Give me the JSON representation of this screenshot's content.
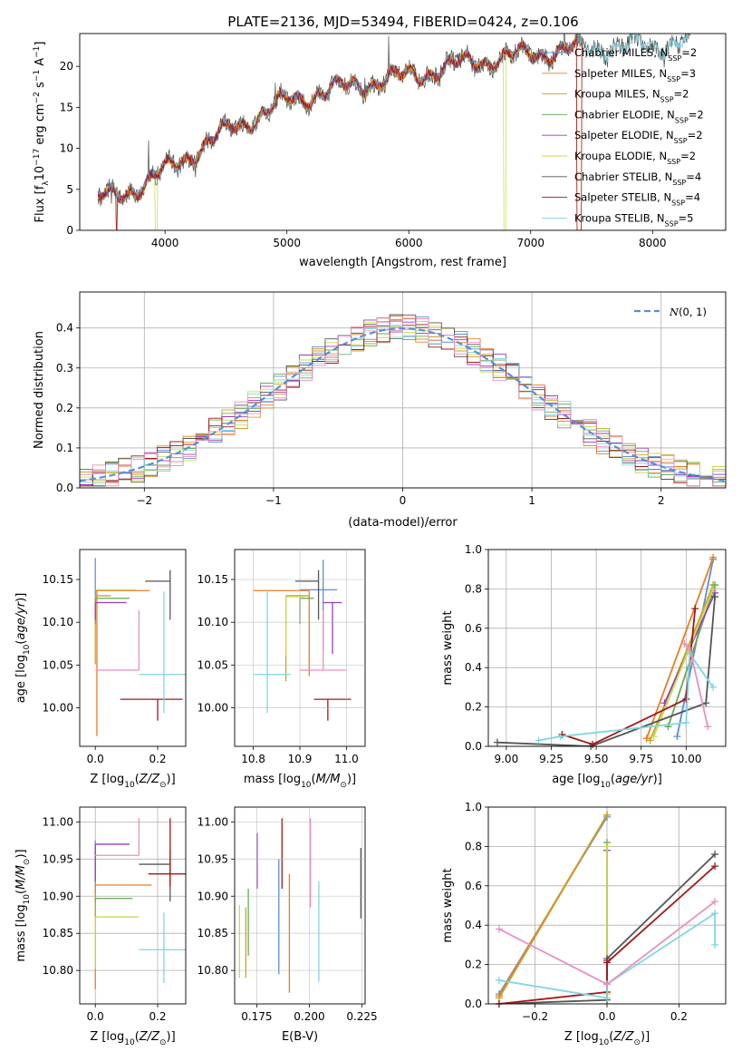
{
  "figure": {
    "title": "PLATE=2136, MJD=53494, FIBERID=0424, z=0.106"
  },
  "colors": [
    "#5a8fd8",
    "#e87d27",
    "#c9a227",
    "#66aa55",
    "#9b3db8",
    "#c8dc4c",
    "#555555",
    "#a01818",
    "#7fd6e0",
    "#e890c0"
  ],
  "model_names": [
    "Chabrier MILES",
    "Salpeter MILES",
    "Kroupa MILES",
    "Chabrier ELODIE",
    "Salpeter ELODIE",
    "Kroupa ELODIE",
    "Chabrier STELIB",
    "Salpeter STELIB",
    "Kroupa STELIB"
  ],
  "chart_data": [
    {
      "id": "spectrum",
      "type": "line",
      "xlabel": "wavelength [Angstrom, rest frame]",
      "ylabel": "Flux [f",
      "xlim": [
        3300,
        8600
      ],
      "ylim": [
        0,
        24
      ],
      "xticks": [
        "4000",
        "5000",
        "6000",
        "7000",
        "8000"
      ],
      "yticks": [
        "0",
        "5",
        "10",
        "15",
        "20"
      ],
      "legend": [
        {
          "name": "Chabrier MILES",
          "nssp": "2"
        },
        {
          "name": "Salpeter MILES",
          "nssp": "3"
        },
        {
          "name": "Kroupa MILES",
          "nssp": "2"
        },
        {
          "name": "Chabrier ELODIE",
          "nssp": "2"
        },
        {
          "name": "Salpeter ELODIE",
          "nssp": "2"
        },
        {
          "name": "Kroupa ELODIE",
          "nssp": "2"
        },
        {
          "name": "Chabrier STELIB",
          "nssp": "4"
        },
        {
          "name": "Salpeter STELIB",
          "nssp": "4"
        },
        {
          "name": "Kroupa STELIB",
          "nssp": "5"
        }
      ],
      "continuum": [
        [
          3450,
          3.8
        ],
        [
          3600,
          4.2
        ],
        [
          3800,
          5.5
        ],
        [
          4000,
          7.2
        ],
        [
          4200,
          9.2
        ],
        [
          4500,
          12.0
        ],
        [
          5000,
          15.8
        ],
        [
          5500,
          17.5
        ],
        [
          6000,
          18.8
        ],
        [
          6500,
          20.5
        ],
        [
          7000,
          21.5
        ],
        [
          7500,
          22.3
        ],
        [
          8000,
          22.5
        ],
        [
          8300,
          23.2
        ]
      ]
    },
    {
      "id": "residuals",
      "type": "histogram",
      "xlabel": "(data-model)/error",
      "ylabel": "Normed distribution",
      "xlim": [
        -2.5,
        2.5
      ],
      "ylim": [
        0,
        0.49
      ],
      "xticks": [
        "−2",
        "−1",
        "0",
        "1",
        "2"
      ],
      "yticks": [
        "0.0",
        "0.1",
        "0.2",
        "0.3",
        "0.4"
      ],
      "gaussian_label": "(0, 1)",
      "bin_width": 0.1
    },
    {
      "id": "age_vs_Z",
      "type": "errorbar",
      "xlabel": "Z [log",
      "ylabel": "age  [log",
      "xlim": [
        -0.05,
        0.29
      ],
      "ylim": [
        9.955,
        10.185
      ],
      "xticks": [
        "0.0",
        "0.2"
      ],
      "yticks": [
        "10.00",
        "10.05",
        "10.10",
        "10.15"
      ],
      "points": [
        {
          "x": 0.0,
          "xerr": [
            0.0,
            0.0
          ],
          "y": 10.14,
          "yerr": [
            0.035,
            0.035
          ],
          "c": 0
        },
        {
          "x": 0.005,
          "xerr": [
            0.005,
            0.17
          ],
          "y": 10.137,
          "yerr": [
            0.17,
            0.0
          ],
          "c": 1
        },
        {
          "x": 0.0,
          "xerr": [
            0.0,
            0.05
          ],
          "y": 10.131,
          "yerr": [
            0.08,
            0.0
          ],
          "c": 2
        },
        {
          "x": 0.0,
          "xerr": [
            0.0,
            0.11
          ],
          "y": 10.128,
          "yerr": [
            0.03,
            0.0
          ],
          "c": 3
        },
        {
          "x": 0.0,
          "xerr": [
            0.0,
            0.1
          ],
          "y": 10.123,
          "yerr": [
            0.02,
            0.0
          ],
          "c": 4
        },
        {
          "x": 0.0,
          "xerr": [
            0.0,
            0.13
          ],
          "y": 10.138,
          "yerr": [
            0.0,
            0.0
          ],
          "c": 5
        },
        {
          "x": 0.24,
          "xerr": [
            0.08,
            0.0
          ],
          "y": 10.148,
          "yerr": [
            0.045,
            0.013
          ],
          "c": 6
        },
        {
          "x": 0.2,
          "xerr": [
            0.12,
            0.08
          ],
          "y": 10.01,
          "yerr": [
            0.025,
            0.0
          ],
          "c": 7
        },
        {
          "x": 0.22,
          "xerr": [
            0.08,
            0.08
          ],
          "y": 10.039,
          "yerr": [
            0.045,
            0.097
          ],
          "c": 8
        },
        {
          "x": 0.14,
          "xerr": [
            0.14,
            0.0
          ],
          "y": 10.044,
          "yerr": [
            0.0,
            0.07
          ],
          "c": 9
        }
      ]
    },
    {
      "id": "age_vs_mass",
      "type": "errorbar",
      "xlabel": "mass [log",
      "ylabel": "",
      "xlim": [
        10.76,
        11.04
      ],
      "ylim": [
        9.955,
        10.185
      ],
      "xticks": [
        "10.8",
        "10.9",
        "11.0"
      ],
      "yticks": [
        "10.00",
        "10.05",
        "10.10",
        "10.15"
      ],
      "points": [
        {
          "x": 10.95,
          "xerr": [
            0.05,
            0.03
          ],
          "y": 10.138,
          "yerr": [
            0.07,
            0.035
          ],
          "c": 0
        },
        {
          "x": 10.92,
          "xerr": [
            0.12,
            0.0
          ],
          "y": 10.137,
          "yerr": [
            0.1,
            0.0
          ],
          "c": 1
        },
        {
          "x": 10.87,
          "xerr": [
            0.0,
            0.05
          ],
          "y": 10.131,
          "yerr": [
            0.1,
            0.0
          ],
          "c": 2
        },
        {
          "x": 10.9,
          "xerr": [
            0.0,
            0.03
          ],
          "y": 10.128,
          "yerr": [
            0.03,
            0.0
          ],
          "c": 3
        },
        {
          "x": 10.97,
          "xerr": [
            0.02,
            0.02
          ],
          "y": 10.123,
          "yerr": [
            0.06,
            0.0
          ],
          "c": 4
        },
        {
          "x": 10.87,
          "xerr": [
            0.0,
            0.04
          ],
          "y": 10.13,
          "yerr": [
            0.07,
            0.0
          ],
          "c": 5
        },
        {
          "x": 10.94,
          "xerr": [
            0.05,
            0.0
          ],
          "y": 10.148,
          "yerr": [
            0.045,
            0.013
          ],
          "c": 6
        },
        {
          "x": 10.96,
          "xerr": [
            0.03,
            0.05
          ],
          "y": 10.01,
          "yerr": [
            0.025,
            0.0
          ],
          "c": 7
        },
        {
          "x": 10.83,
          "xerr": [
            0.03,
            0.05
          ],
          "y": 10.039,
          "yerr": [
            0.045,
            0.097
          ],
          "c": 8
        },
        {
          "x": 10.95,
          "xerr": [
            0.05,
            0.05
          ],
          "y": 10.044,
          "yerr": [
            0.0,
            0.07
          ],
          "c": 9
        }
      ]
    },
    {
      "id": "weight_vs_age",
      "type": "line",
      "xlabel": "age  [log",
      "ylabel": "mass weight",
      "xlim": [
        8.9,
        10.22
      ],
      "ylim": [
        0,
        1.0
      ],
      "xticks": [
        "9.00",
        "9.25",
        "9.50",
        "9.75",
        "10.00"
      ],
      "yticks": [
        "0.0",
        "0.2",
        "0.4",
        "0.6",
        "0.8",
        "1.0"
      ],
      "series": [
        {
          "c": 0,
          "x": [
            9.95,
            10.15
          ],
          "y": [
            0.05,
            0.95
          ]
        },
        {
          "c": 1,
          "x": [
            9.78,
            10.15
          ],
          "y": [
            0.04,
            0.96
          ]
        },
        {
          "c": 2,
          "x": [
            9.8,
            10.15
          ],
          "y": [
            0.03,
            0.82
          ]
        },
        {
          "c": 3,
          "x": [
            9.9,
            10.16
          ],
          "y": [
            0.1,
            0.82
          ]
        },
        {
          "c": 4,
          "x": [
            9.88,
            10.16
          ],
          "y": [
            0.22,
            0.78
          ]
        },
        {
          "c": 5,
          "x": [
            9.82,
            10.15
          ],
          "y": [
            0.05,
            0.8
          ]
        },
        {
          "c": 6,
          "x": [
            8.95,
            9.47,
            10.11,
            10.16
          ],
          "y": [
            0.02,
            0.0,
            0.22,
            0.76
          ]
        },
        {
          "c": 7,
          "x": [
            9.31,
            9.48,
            10.0,
            10.05
          ],
          "y": [
            0.06,
            0.01,
            0.24,
            0.7
          ]
        },
        {
          "c": 8,
          "x": [
            9.18,
            9.3,
            10.0,
            10.02,
            10.15
          ],
          "y": [
            0.03,
            0.05,
            0.12,
            0.47,
            0.3
          ]
        },
        {
          "c": 9,
          "x": [
            9.99,
            10.02,
            10.12
          ],
          "y": [
            0.52,
            0.5,
            0.1
          ]
        }
      ]
    },
    {
      "id": "mass_vs_Z",
      "type": "errorbar",
      "xlabel": "Z [log",
      "ylabel": "mass [log",
      "xlim": [
        -0.05,
        0.29
      ],
      "ylim": [
        10.755,
        11.02
      ],
      "xticks": [
        "0.0",
        "0.2"
      ],
      "yticks": [
        "10.80",
        "10.85",
        "10.90",
        "10.95",
        "11.00"
      ],
      "points": [
        {
          "x": 0.0,
          "xerr": [
            0.0,
            0.0
          ],
          "y": 10.95,
          "yerr": [
            0.05,
            0.025
          ],
          "c": 0
        },
        {
          "x": 0.0,
          "xerr": [
            0.0,
            0.18
          ],
          "y": 10.915,
          "yerr": [
            0.14,
            0.0
          ],
          "c": 1
        },
        {
          "x": 0.0,
          "xerr": [
            0.0,
            0.0
          ],
          "y": 10.905,
          "yerr": [
            0.1,
            0.0
          ],
          "c": 2
        },
        {
          "x": 0.0,
          "xerr": [
            0.0,
            0.12
          ],
          "y": 10.897,
          "yerr": [
            0.005,
            0.0
          ],
          "c": 3
        },
        {
          "x": 0.0,
          "xerr": [
            0.0,
            0.11
          ],
          "y": 10.97,
          "yerr": [
            0.05,
            0.0
          ],
          "c": 4
        },
        {
          "x": 0.0,
          "xerr": [
            0.0,
            0.14
          ],
          "y": 10.872,
          "yerr": [
            0.07,
            0.0
          ],
          "c": 5
        },
        {
          "x": 0.24,
          "xerr": [
            0.1,
            0.0
          ],
          "y": 10.943,
          "yerr": [
            0.05,
            0.02
          ],
          "c": 6
        },
        {
          "x": 0.24,
          "xerr": [
            0.07,
            0.07
          ],
          "y": 10.93,
          "yerr": [
            0.017,
            0.075
          ],
          "c": 7
        },
        {
          "x": 0.22,
          "xerr": [
            0.08,
            0.08
          ],
          "y": 10.828,
          "yerr": [
            0.045,
            0.05
          ],
          "c": 8
        },
        {
          "x": 0.14,
          "xerr": [
            0.14,
            0.0
          ],
          "y": 10.955,
          "yerr": [
            0.0,
            0.05
          ],
          "c": 9
        }
      ]
    },
    {
      "id": "mass_vs_EBV",
      "type": "errorbar",
      "xlabel": "E(B-V)",
      "ylabel": "",
      "xlim": [
        0.1645,
        0.2265
      ],
      "ylim": [
        10.755,
        11.02
      ],
      "xticks": [
        "0.175",
        "0.200",
        "0.225"
      ],
      "yticks": [
        "10.80",
        "10.85",
        "10.90",
        "10.95",
        "11.00"
      ],
      "points": [
        {
          "x": 0.1855,
          "y": 10.88,
          "yerr": [
            0.085,
            0.07
          ],
          "c": 0
        },
        {
          "x": 0.1905,
          "y": 10.85,
          "yerr": [
            0.08,
            0.08
          ],
          "c": 1
        },
        {
          "x": 0.1698,
          "y": 10.855,
          "yerr": [
            0.065,
            0.03
          ],
          "c": 2
        },
        {
          "x": 0.171,
          "y": 10.85,
          "yerr": [
            0.03,
            0.06
          ],
          "c": 3
        },
        {
          "x": 0.1752,
          "y": 10.95,
          "yerr": [
            0.04,
            0.035
          ],
          "c": 4
        },
        {
          "x": 0.1668,
          "y": 10.848,
          "yerr": [
            0.058,
            0.04
          ],
          "c": 5
        },
        {
          "x": 0.2245,
          "y": 10.92,
          "yerr": [
            0.05,
            0.045
          ],
          "c": 6
        },
        {
          "x": 0.187,
          "y": 10.97,
          "yerr": [
            0.06,
            0.035
          ],
          "c": 7
        },
        {
          "x": 0.2045,
          "y": 10.855,
          "yerr": [
            0.07,
            0.065
          ],
          "c": 8
        },
        {
          "x": 0.2005,
          "y": 10.945,
          "yerr": [
            0.06,
            0.06
          ],
          "c": 9
        }
      ]
    },
    {
      "id": "weight_vs_Z",
      "type": "line",
      "xlabel": "Z [log",
      "ylabel": "mass weight",
      "xlim": [
        -0.33,
        0.33
      ],
      "ylim": [
        0,
        1.0
      ],
      "xticks": [
        "−0.2",
        "0.0",
        "0.2"
      ],
      "yticks": [
        "0.0",
        "0.2",
        "0.4",
        "0.6",
        "0.8",
        "1.0"
      ],
      "series": [
        {
          "c": 0,
          "x": [
            -0.3,
            0.0
          ],
          "y": [
            0.05,
            0.95
          ]
        },
        {
          "c": 1,
          "x": [
            -0.3,
            0.0
          ],
          "y": [
            0.04,
            0.96
          ]
        },
        {
          "c": 2,
          "x": [
            -0.3,
            0.0
          ],
          "y": [
            0.03,
            0.96
          ]
        },
        {
          "c": 3,
          "x": [
            0.0,
            0.0
          ],
          "y": [
            0.1,
            0.82
          ]
        },
        {
          "c": 4,
          "x": [
            0.0,
            0.0
          ],
          "y": [
            0.22,
            0.78
          ]
        },
        {
          "c": 5,
          "x": [
            0.0,
            0.0
          ],
          "y": [
            0.05,
            0.8
          ]
        },
        {
          "c": 6,
          "x": [
            -0.3,
            0.0,
            0.0,
            0.3
          ],
          "y": [
            0.0,
            0.02,
            0.23,
            0.76
          ]
        },
        {
          "c": 7,
          "x": [
            -0.3,
            0.0,
            0.0,
            0.3
          ],
          "y": [
            0.0,
            0.06,
            0.21,
            0.7
          ]
        },
        {
          "c": 8,
          "x": [
            -0.3,
            0.0,
            0.0,
            0.3,
            0.3
          ],
          "y": [
            0.12,
            0.03,
            0.1,
            0.46,
            0.3
          ]
        },
        {
          "c": 9,
          "x": [
            -0.3,
            0.0,
            0.3
          ],
          "y": [
            0.38,
            0.1,
            0.52
          ]
        }
      ]
    }
  ]
}
